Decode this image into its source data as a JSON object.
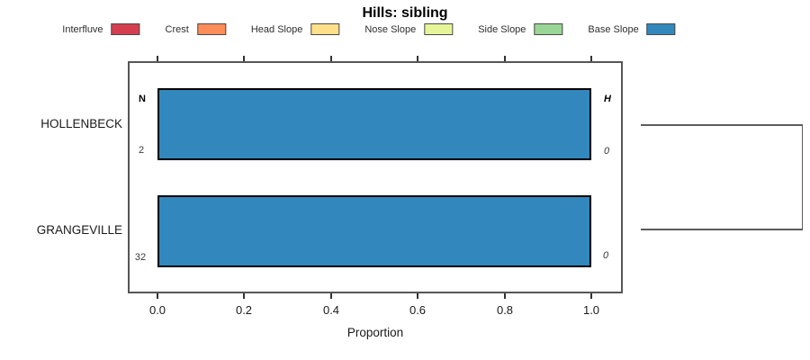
{
  "chart_data": {
    "type": "bar",
    "orientation": "horizontal",
    "title": "Hills: sibling",
    "xlabel": "Proportion",
    "xlim": [
      0,
      1
    ],
    "xtick_values": [
      0.0,
      0.2,
      0.4,
      0.6,
      0.8,
      1.0
    ],
    "xtick_labels": [
      "0.0",
      "0.2",
      "0.4",
      "0.6",
      "0.8",
      "1.0"
    ],
    "grid": false,
    "legend_position": "top",
    "legend": [
      {
        "label": "Interfluve",
        "color": "#D53E4F"
      },
      {
        "label": "Crest",
        "color": "#FC8D59"
      },
      {
        "label": "Head Slope",
        "color": "#FEE08B"
      },
      {
        "label": "Nose Slope",
        "color": "#E6F598"
      },
      {
        "label": "Side Slope",
        "color": "#99D594"
      },
      {
        "label": "Base Slope",
        "color": "#3288BD"
      }
    ],
    "categories": [
      "HOLLENBECK",
      "GRANGEVILLE"
    ],
    "series": [
      {
        "name": "Base Slope",
        "color": "#3288BD",
        "values": [
          1.0,
          1.0
        ]
      }
    ],
    "annotations": {
      "left_header": "N",
      "right_header": "H",
      "n_values": [
        "2",
        "32"
      ],
      "h_values": [
        "0",
        "0"
      ]
    },
    "dendrogram": {
      "leaves": [
        "HOLLENBECK",
        "GRANGEVILLE"
      ],
      "description": "two-leaf cluster; branches from each row join at far right"
    }
  }
}
